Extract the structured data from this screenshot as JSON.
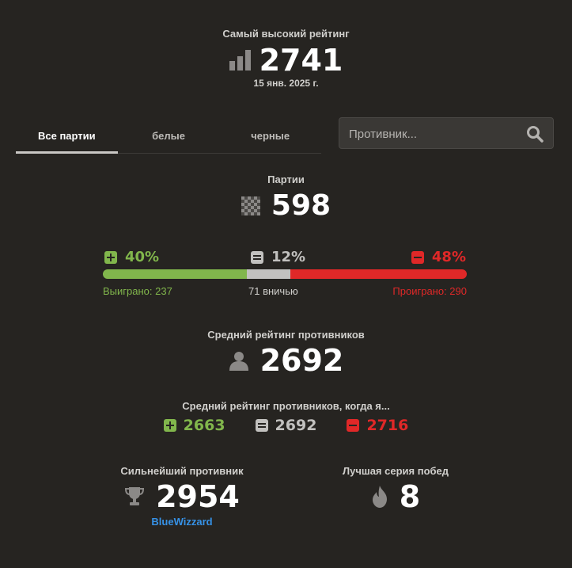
{
  "highest_rating": {
    "label": "Самый высокий рейтинг",
    "value": "2741",
    "date": "15 янв. 2025 г.",
    "icon": "bar-chart-icon"
  },
  "tabs": [
    {
      "label": "Все партии",
      "active": true
    },
    {
      "label": "белые",
      "active": false
    },
    {
      "label": "черные",
      "active": false
    }
  ],
  "search": {
    "placeholder": "Противник...",
    "value": "",
    "icon": "search-icon"
  },
  "games": {
    "label": "Партии",
    "value": "598",
    "icon": "chessboard-icon"
  },
  "results": {
    "win_percent": "40%",
    "draw_percent": "12%",
    "loss_percent": "48%",
    "win_text": "Выиграно: 237",
    "draw_text": "71 вничью",
    "loss_text": "Проиграно: 290",
    "wins": 237,
    "draws": 71,
    "losses": 290
  },
  "avg_opponent": {
    "label": "Средний рейтинг противников",
    "value": "2692",
    "icon": "user-icon"
  },
  "avg_when": {
    "label": "Средний рейтинг противников, когда я...",
    "win_value": "2663",
    "draw_value": "2692",
    "loss_value": "2716"
  },
  "strongest": {
    "label": "Сильнейший противник",
    "value": "2954",
    "name": "BlueWizzard",
    "icon": "trophy-icon"
  },
  "streak": {
    "label": "Лучшая серия побед",
    "value": "8",
    "icon": "flame-icon"
  },
  "colors": {
    "win": "#81b64c",
    "draw": "#c2c1bf",
    "loss": "#e02828",
    "link": "#3692e7",
    "background": "#262421"
  }
}
